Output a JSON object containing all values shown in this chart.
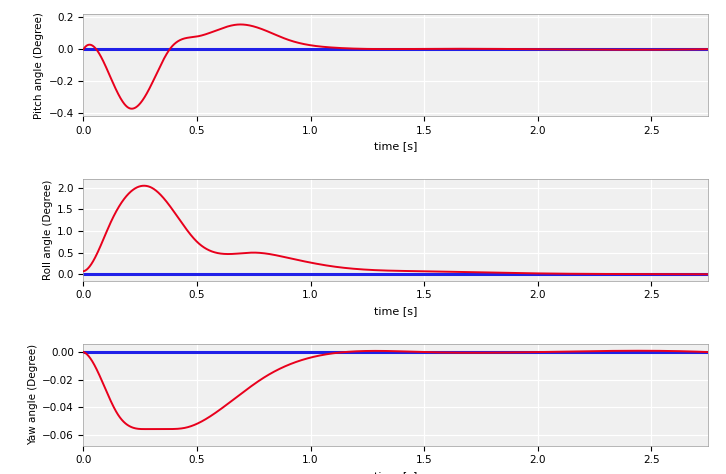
{
  "xlim": [
    0,
    2.75
  ],
  "xticks": [
    0,
    0.5,
    1,
    1.5,
    2,
    2.5
  ],
  "xlabel": "time [s]",
  "pitch_ylim": [
    -0.42,
    0.22
  ],
  "pitch_yticks": [
    -0.4,
    -0.2,
    0,
    0.2
  ],
  "pitch_ylabel": "Pitch angle (Degree)",
  "roll_ylim": [
    -0.15,
    2.2
  ],
  "roll_yticks": [
    0,
    0.5,
    1,
    1.5,
    2
  ],
  "roll_ylabel": "Roll angle (Degree)",
  "yaw_ylim": [
    -0.068,
    0.006
  ],
  "yaw_yticks": [
    -0.06,
    -0.04,
    -0.02,
    0
  ],
  "yaw_ylabel": "Yaw angle (Degree)",
  "line_color_red": "#e8001c",
  "line_color_blue": "#2020e8",
  "bg_color": "#f0f0f0",
  "grid_color": "#ffffff",
  "line_width": 1.4
}
